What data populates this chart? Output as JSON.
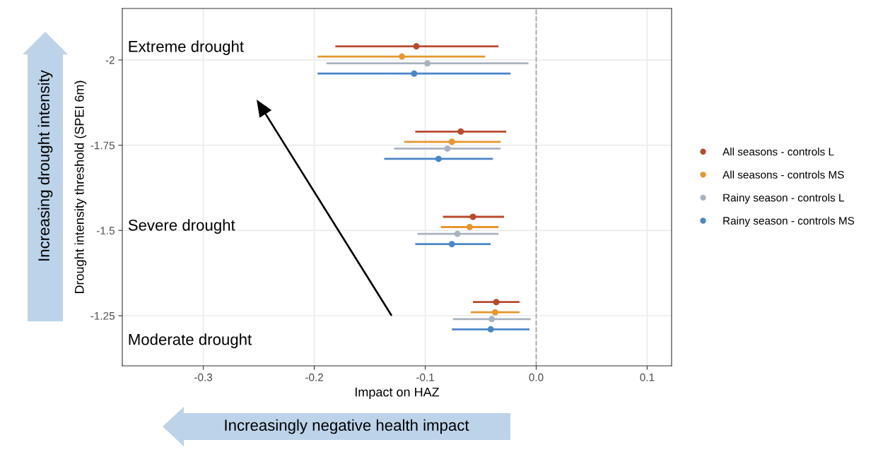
{
  "chart_data": {
    "type": "scatter",
    "xlabel": "Impact on HAZ",
    "ylabel": "Drought intensity threshold (SPEI 6m)",
    "xlim": [
      -0.373,
      0.122
    ],
    "xticks": [
      -0.3,
      -0.2,
      -0.1,
      {
        "value": 0,
        "label": "0.0"
      },
      0.1
    ],
    "ylim": [
      -1.103,
      -2.151
    ],
    "yticks": [
      -2,
      -1.75,
      -1.5,
      -1.25
    ],
    "grid": true,
    "legend": "right",
    "marker": "circle",
    "ref_lines": [
      {
        "axis": "x",
        "value": 0,
        "color": "#a6a6a6",
        "line_style": "dashed"
      }
    ],
    "annotations": [
      "Extreme drought",
      "Severe drought",
      "Moderate drought",
      "Increasing drought intensity",
      "Increasingly negative health impact"
    ],
    "series": [
      {
        "name": "All seasons - controls L",
        "color": "#b94a2c",
        "x": [
          -0.108,
          -0.068,
          -0.057,
          -0.036
        ],
        "values": [
          -2.04,
          -1.79,
          -1.54,
          -1.29
        ],
        "xerrors": [
          [
            -0.181,
            -0.034
          ],
          [
            -0.109,
            -0.027
          ],
          [
            -0.084,
            -0.029
          ],
          [
            -0.057,
            -0.015
          ]
        ]
      },
      {
        "name": "All seasons - controls MS",
        "color": "#e8962e",
        "x": [
          -0.121,
          -0.076,
          -0.06,
          -0.037
        ],
        "values": [
          -2.01,
          -1.76,
          -1.51,
          -1.26
        ],
        "xerrors": [
          [
            -0.197,
            -0.046
          ],
          [
            -0.119,
            -0.032
          ],
          [
            -0.086,
            -0.034
          ],
          [
            -0.059,
            -0.015
          ]
        ]
      },
      {
        "name": "Rainy season - controls L",
        "color": "#a9b3c0",
        "x": [
          -0.098,
          -0.08,
          -0.071,
          -0.04
        ],
        "values": [
          -1.99,
          -1.74,
          -1.49,
          -1.24
        ],
        "xerrors": [
          [
            -0.189,
            -0.007
          ],
          [
            -0.128,
            -0.032
          ],
          [
            -0.107,
            -0.034
          ],
          [
            -0.075,
            -0.005
          ]
        ]
      },
      {
        "name": "Rainy season - controls MS",
        "color": "#4a86c8",
        "x": [
          -0.11,
          -0.088,
          -0.076,
          -0.041
        ],
        "values": [
          -1.96,
          -1.71,
          -1.46,
          -1.21
        ],
        "xerrors": [
          [
            -0.197,
            -0.023
          ],
          [
            -0.137,
            -0.039
          ],
          [
            -0.109,
            -0.041
          ],
          [
            -0.076,
            -0.006
          ]
        ]
      }
    ]
  }
}
